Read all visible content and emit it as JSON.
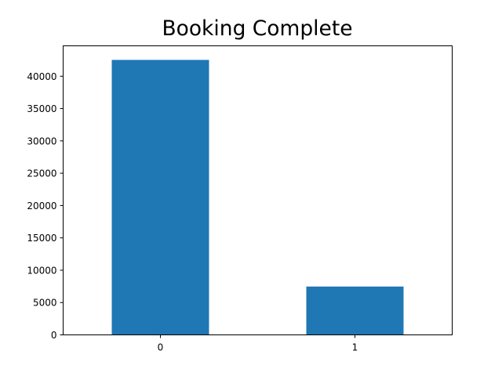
{
  "chart_data": {
    "type": "bar",
    "title": "Booking Complete",
    "xlabel": "",
    "ylabel": "",
    "categories": [
      "0",
      "1"
    ],
    "values": [
      42522,
      7478
    ],
    "ylim": [
      0,
      44700
    ],
    "yticks": [
      0,
      5000,
      10000,
      15000,
      20000,
      25000,
      30000,
      35000,
      40000
    ],
    "bar_color": "#1f77b4",
    "grid": false,
    "legend": "none"
  }
}
